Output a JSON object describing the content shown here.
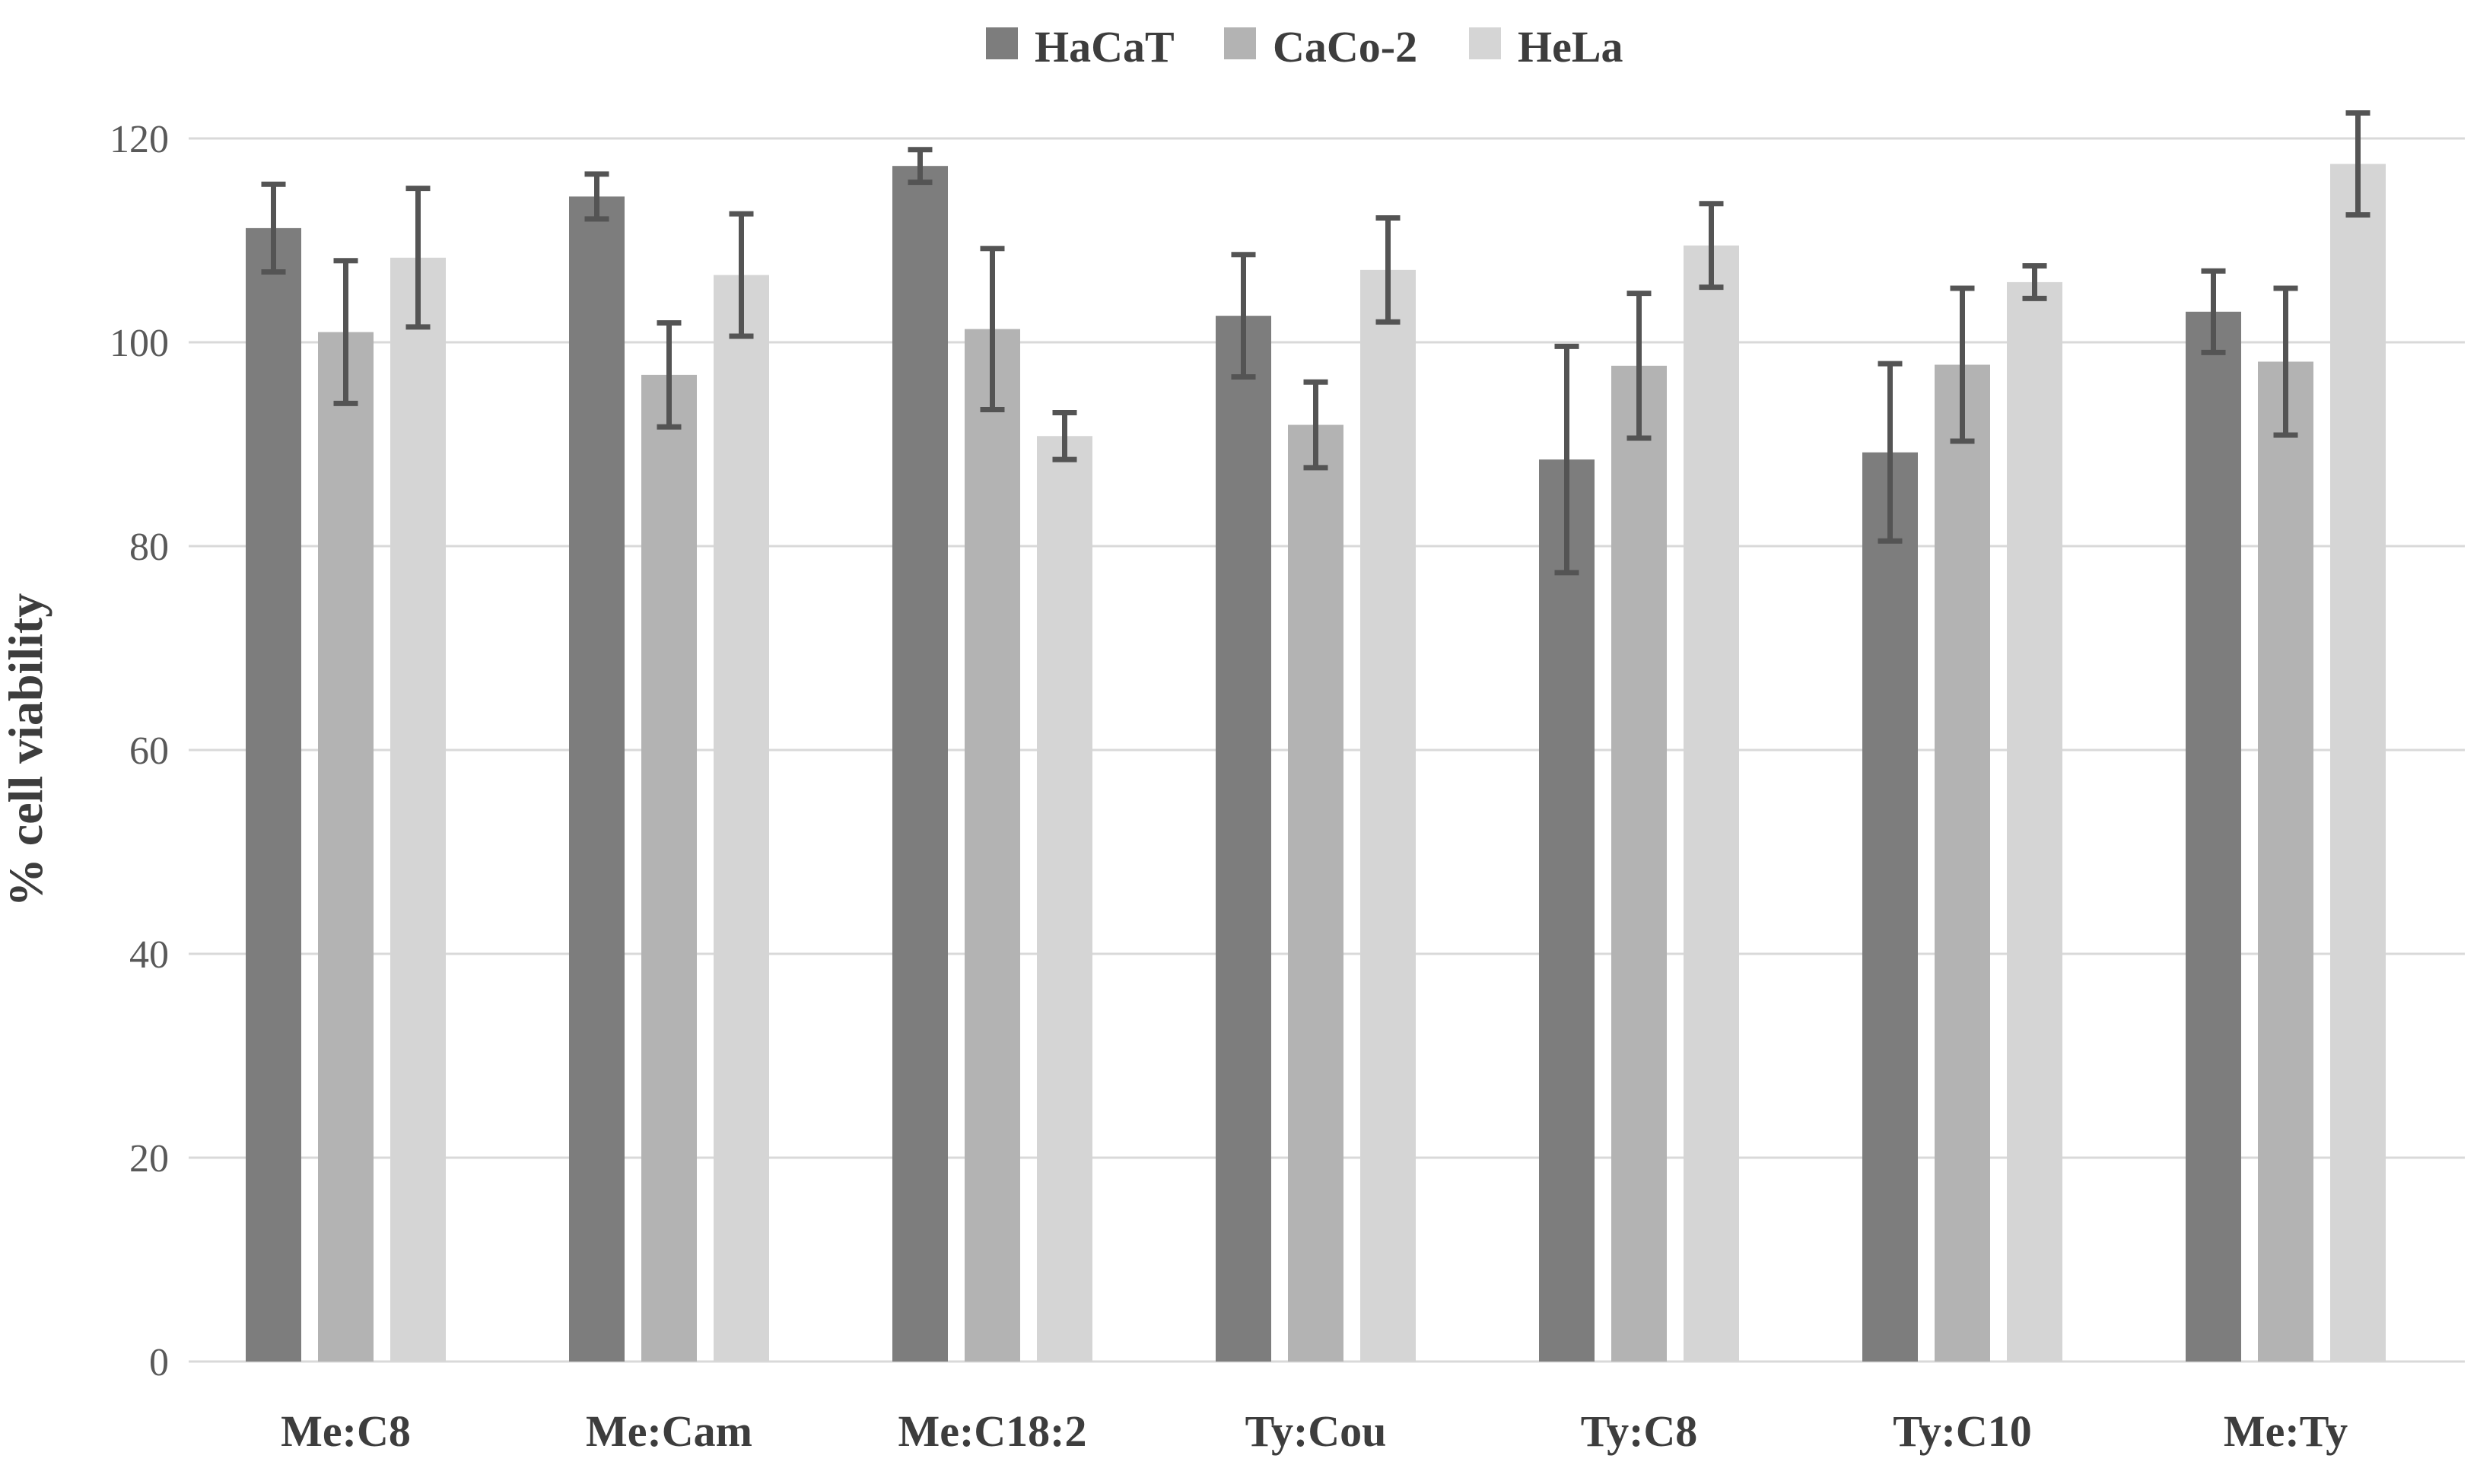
{
  "chart_data": {
    "type": "bar",
    "title": "",
    "xlabel": "",
    "ylabel": "% cell viability",
    "ylim": [
      0,
      120
    ],
    "ytick_step": 20,
    "yticks": [
      0,
      20,
      40,
      60,
      80,
      100,
      120
    ],
    "grid": true,
    "legend_position": "top-center",
    "categories": [
      "Me:C8",
      "Me:Cam",
      "Me:C18:2",
      "Ty:Cou",
      "Ty:C8",
      "Ty:C10",
      "Me:Ty"
    ],
    "series": [
      {
        "name": "HaCaT",
        "color": "#7d7d7d",
        "values": [
          111.2,
          114.3,
          117.3,
          102.6,
          88.5,
          89.2,
          103.0
        ],
        "errors": [
          4.3,
          2.2,
          1.6,
          6.0,
          11.1,
          8.7,
          4.0
        ]
      },
      {
        "name": "CaCo-2",
        "color": "#b3b3b3",
        "values": [
          101.0,
          96.8,
          101.3,
          91.9,
          97.7,
          97.8,
          98.1
        ],
        "errors": [
          7.0,
          5.1,
          7.9,
          4.2,
          7.1,
          7.5,
          7.2
        ]
      },
      {
        "name": "HeLa",
        "color": "#d5d5d5",
        "values": [
          108.3,
          106.6,
          90.8,
          107.1,
          109.5,
          105.9,
          117.5
        ],
        "errors": [
          6.8,
          6.0,
          2.3,
          5.1,
          4.1,
          1.6,
          5.0
        ]
      }
    ],
    "colors": {
      "gridline": "#d9d9d9",
      "error_bar": "#545454",
      "tick_text": "#595959",
      "label_text": "#3d3d3d",
      "background": "#ffffff"
    }
  }
}
